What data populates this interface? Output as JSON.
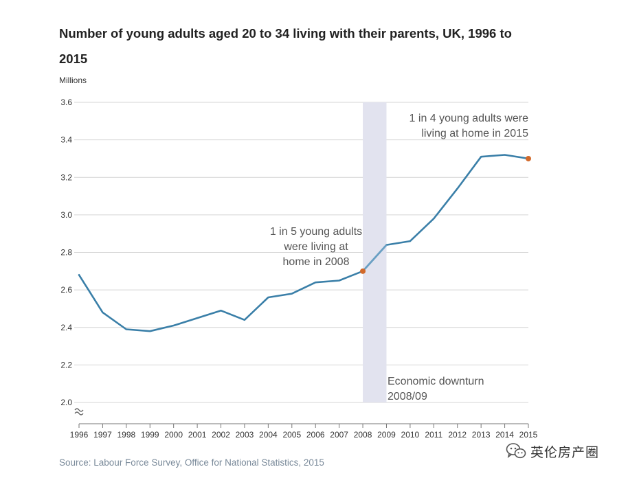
{
  "chart_data": {
    "type": "line",
    "title": "Number of young adults aged 20 to 34 living with their parents, UK, 1996 to 2015",
    "ylabel": "Millions",
    "xlabel": "",
    "ylim": [
      2.0,
      3.6
    ],
    "yticks": [
      "2.0",
      "2.2",
      "2.4",
      "2.6",
      "2.8",
      "3.0",
      "3.2",
      "3.4",
      "3.6"
    ],
    "x": [
      "1996",
      "1997",
      "1998",
      "1999",
      "2000",
      "2001",
      "2002",
      "2003",
      "2004",
      "2005",
      "2006",
      "2007",
      "2008",
      "2009",
      "2010",
      "2011",
      "2012",
      "2013",
      "2014",
      "2015"
    ],
    "values": [
      2.68,
      2.48,
      2.39,
      2.38,
      2.41,
      2.45,
      2.49,
      2.44,
      2.56,
      2.58,
      2.64,
      2.65,
      2.7,
      2.84,
      2.86,
      2.98,
      3.14,
      3.31,
      3.32,
      3.3
    ],
    "grid": true,
    "line_color": "#3a7fa8",
    "highlight_color": "#e2e3ef",
    "marker_color": "#d2692a",
    "shaded_region": {
      "from": "2008",
      "to": "2009",
      "label_line1": "Economic downturn",
      "label_line2": "2008/09"
    },
    "annotations": [
      {
        "x": "2008",
        "lines": [
          "1 in 5 young adults",
          "were living at",
          "home in 2008"
        ]
      },
      {
        "x": "2015",
        "lines": [
          "1 in 4 young adults were",
          "living at home in 2015"
        ]
      }
    ]
  },
  "source": "Source: Labour Force Survey, Office for National Statistics, 2015",
  "watermark": {
    "text": "英伦房产圈",
    "icon": "wechat-icon"
  }
}
